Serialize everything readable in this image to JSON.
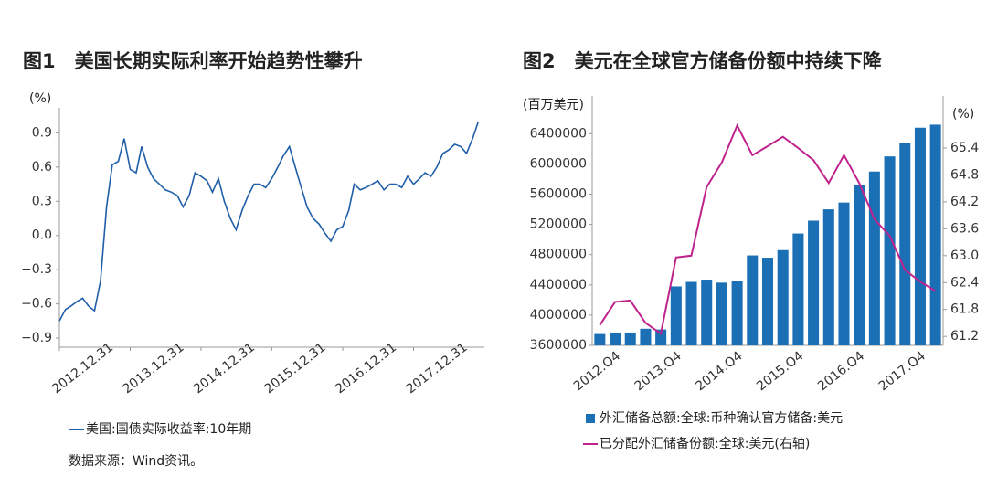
{
  "chart_data": [
    {
      "type": "line",
      "title": "图1　美国长期实际利率开始趋势性攀升",
      "y_label": "(%)",
      "source": "数据来源：Wind资讯。",
      "x": [
        "2012.12.31",
        "2013.01.31",
        "2013.02.28",
        "2013.03.31",
        "2013.04.30",
        "2013.05.31",
        "2013.06.30",
        "2013.07.31",
        "2013.08.31",
        "2013.09.30",
        "2013.10.31",
        "2013.11.30",
        "2013.12.31",
        "2014.01.31",
        "2014.02.28",
        "2014.03.31",
        "2014.04.30",
        "2014.05.31",
        "2014.06.30",
        "2014.07.31",
        "2014.08.31",
        "2014.09.30",
        "2014.10.31",
        "2014.11.30",
        "2014.12.31",
        "2015.01.31",
        "2015.02.28",
        "2015.03.31",
        "2015.04.30",
        "2015.05.31",
        "2015.06.30",
        "2015.07.31",
        "2015.08.31",
        "2015.09.30",
        "2015.10.31",
        "2015.11.30",
        "2015.12.31",
        "2016.01.31",
        "2016.02.29",
        "2016.03.31",
        "2016.04.30",
        "2016.05.31",
        "2016.06.30",
        "2016.07.31",
        "2016.08.31",
        "2016.09.30",
        "2016.10.31",
        "2016.11.30",
        "2016.12.31",
        "2017.01.31",
        "2017.02.28",
        "2017.03.31",
        "2017.04.30",
        "2017.05.31",
        "2017.06.30",
        "2017.07.31",
        "2017.08.31",
        "2017.09.30",
        "2017.10.31",
        "2017.11.30",
        "2017.12.31",
        "2018.01.31",
        "2018.02.28",
        "2018.03.31",
        "2018.04.30",
        "2018.05.31",
        "2018.06.30",
        "2018.07.31",
        "2018.08.31",
        "2018.09.30",
        "2018.10.31",
        "2018.11.30"
      ],
      "series": [
        {
          "name": "美国:国债实际收益率:10年期",
          "color": "#1f5ea8",
          "values": [
            -0.75,
            -0.65,
            -0.62,
            -0.58,
            -0.55,
            -0.62,
            -0.66,
            -0.4,
            0.25,
            0.62,
            0.65,
            0.85,
            0.58,
            0.55,
            0.78,
            0.6,
            0.5,
            0.45,
            0.4,
            0.38,
            0.35,
            0.25,
            0.35,
            0.55,
            0.52,
            0.48,
            0.38,
            0.5,
            0.3,
            0.15,
            0.05,
            0.22,
            0.35,
            0.45,
            0.45,
            0.42,
            0.5,
            0.6,
            0.7,
            0.78,
            0.6,
            0.42,
            0.25,
            0.15,
            0.1,
            0.02,
            -0.05,
            0.05,
            0.08,
            0.22,
            0.45,
            0.4,
            0.42,
            0.45,
            0.48,
            0.4,
            0.45,
            0.45,
            0.42,
            0.52,
            0.45,
            0.5,
            0.55,
            0.52,
            0.6,
            0.72,
            0.75,
            0.8,
            0.78,
            0.72,
            0.85,
            1.0
          ]
        }
      ],
      "xlim": [
        "2012.12.31",
        "2018.12.31"
      ],
      "xticks": [
        "2012.12.31",
        "2013.12.31",
        "2014.12.31",
        "2015.12.31",
        "2016.12.31",
        "2017.12.31"
      ],
      "ylim": [
        -0.98,
        1.12
      ],
      "yticks": [
        0.9,
        0.6,
        0.3,
        {
          "value": 0,
          "label": "0.0"
        },
        {
          "value": -0.3,
          "label": "−0.3"
        },
        {
          "value": -0.6,
          "label": "−0.6"
        },
        {
          "value": -0.9,
          "label": "−0.9"
        }
      ]
    },
    {
      "type": "combo",
      "title": "图2　美元在全球官方储备份额中持续下降",
      "y_label": "(百万美元)",
      "y2_label": "(%)",
      "categories": [
        null,
        "2012.Q4",
        null,
        null,
        null,
        "2013.Q4",
        null,
        null,
        null,
        "2014.Q4",
        null,
        null,
        null,
        "2015.Q4",
        null,
        null,
        null,
        "2016.Q4",
        null,
        null,
        null,
        "2017.Q4",
        null
      ],
      "series": [
        {
          "name": "外汇储备总额:全球:币种确认官方储备:美元",
          "type": "bar",
          "color": "#1a6fb5",
          "values": [
            3750000,
            3760000,
            3770000,
            3820000,
            3810000,
            4380000,
            4440000,
            4470000,
            4430000,
            4450000,
            4790000,
            4760000,
            4860000,
            5080000,
            5250000,
            5400000,
            5490000,
            5720000,
            5900000,
            6100000,
            6280000,
            6480000,
            6520000
          ]
        },
        {
          "name": "已分配外汇储备份额:全球:美元(右轴)",
          "type": "line",
          "axis": "y2",
          "color": "#c0228c",
          "values": [
            61.45,
            61.97,
            62.0,
            61.5,
            61.26,
            62.96,
            63.0,
            64.53,
            65.08,
            65.9,
            65.24,
            65.44,
            65.65,
            65.4,
            65.13,
            64.62,
            65.24,
            64.62,
            63.81,
            63.44,
            62.68,
            62.42,
            62.21
          ]
        }
      ],
      "ylim": [
        3600000,
        6900000
      ],
      "yticks": [
        3600000,
        4000000,
        4400000,
        4800000,
        5200000,
        5600000,
        6000000,
        6400000
      ],
      "y2lim": [
        61.0,
        66.56
      ],
      "y2ticks": [
        61.2,
        61.8,
        62.4,
        {
          "value": 63,
          "label": "63.0"
        },
        63.6,
        64.2,
        64.8,
        65.4
      ]
    }
  ]
}
